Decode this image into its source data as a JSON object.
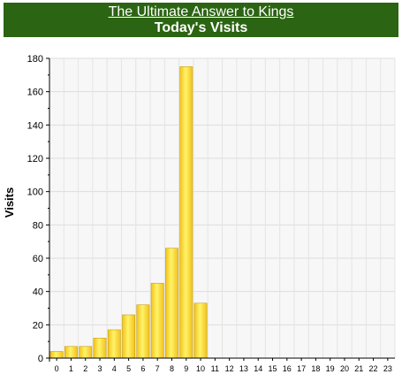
{
  "header": {
    "site_link": "The Ultimate Answer to Kings",
    "bg_color": "#2b6412"
  },
  "chart_data": {
    "type": "bar",
    "title": "Today's Visits",
    "xlabel": "",
    "ylabel": "Visits",
    "ylim": [
      0,
      180
    ],
    "yticks": [
      0,
      20,
      40,
      60,
      80,
      100,
      120,
      140,
      160,
      180
    ],
    "grid": true,
    "categories": [
      "0",
      "1",
      "2",
      "3",
      "4",
      "5",
      "6",
      "7",
      "8",
      "9",
      "10",
      "11",
      "12",
      "13",
      "14",
      "15",
      "16",
      "17",
      "18",
      "19",
      "20",
      "21",
      "22",
      "23"
    ],
    "values": [
      4,
      7,
      7,
      12,
      17,
      26,
      32,
      45,
      66,
      175,
      33,
      0,
      0,
      0,
      0,
      0,
      0,
      0,
      0,
      0,
      0,
      0,
      0,
      0
    ],
    "bar_color": "#f2c21a",
    "bar_highlight": "#fff36a"
  }
}
